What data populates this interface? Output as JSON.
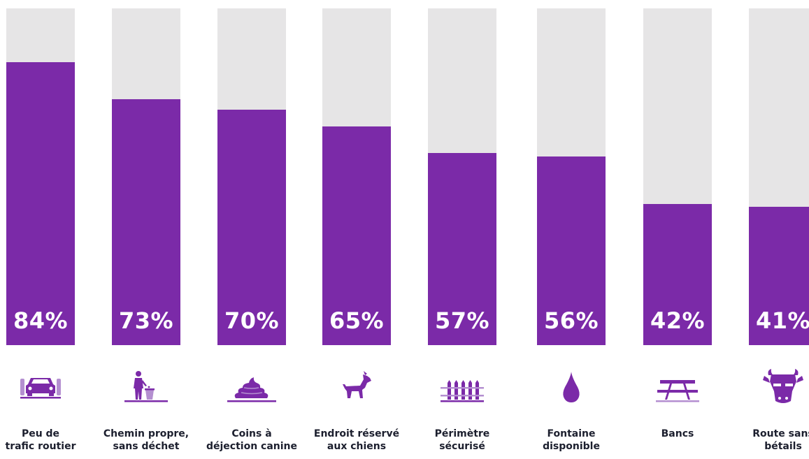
{
  "chart_data": {
    "type": "bar",
    "title": "",
    "xlabel": "",
    "ylabel": "",
    "ylim": [
      0,
      100
    ],
    "grid": false,
    "colors": {
      "fill": "#7b2aa8",
      "track": "#e6e5e6",
      "value_text": "#ffffff",
      "label_text": "#1c1f2e"
    },
    "categories": [
      "Peu de\ntrafic routier",
      "Chemin propre,\nsans déchet",
      "Coins à\ndéjection canine",
      "Endroit réservé\naux chiens",
      "Périmètre\nsécurisé",
      "Fontaine\ndisponible",
      "Bancs",
      "Route sans\nbétails"
    ],
    "values": [
      84,
      73,
      70,
      65,
      57,
      56,
      42,
      41
    ],
    "value_labels": [
      "84%",
      "73%",
      "70%",
      "65%",
      "57%",
      "56%",
      "42%",
      "41%"
    ],
    "icons": [
      "car-icon",
      "trash-bin-icon",
      "dog-poop-icon",
      "dog-icon",
      "fence-icon",
      "water-drop-icon",
      "picnic-bench-icon",
      "cow-icon"
    ]
  }
}
